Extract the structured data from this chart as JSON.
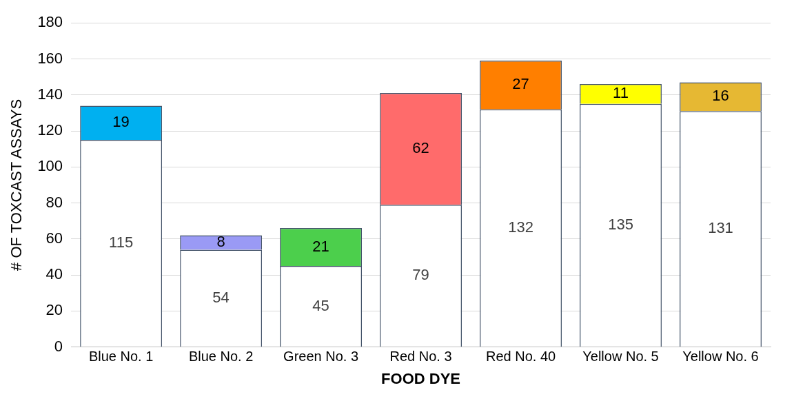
{
  "chart_data": {
    "type": "bar",
    "stacked": true,
    "xlabel": "FOOD DYE",
    "ylabel": "# OF TOXCAST ASSAYS",
    "categories": [
      "Blue No. 1",
      "Blue No. 2",
      "Green No. 3",
      "Red No. 3",
      "Red No. 40",
      "Yellow No. 5",
      "Yellow No. 6"
    ],
    "series": [
      {
        "color": "#ffffff",
        "values": [
          115,
          54,
          45,
          79,
          132,
          135,
          131
        ]
      },
      {
        "colors": [
          "#00b0f0",
          "#9a9af5",
          "#4ccf4c",
          "#ff6b6b",
          "#ff7f00",
          "#ffff00",
          "#e6b833"
        ],
        "values": [
          19,
          8,
          21,
          62,
          27,
          11,
          16
        ]
      }
    ],
    "ylim": [
      0,
      180
    ],
    "yticks": [
      0,
      20,
      40,
      60,
      80,
      100,
      120,
      140,
      160,
      180
    ],
    "grid": "y",
    "legend": false,
    "data_labels": true
  }
}
